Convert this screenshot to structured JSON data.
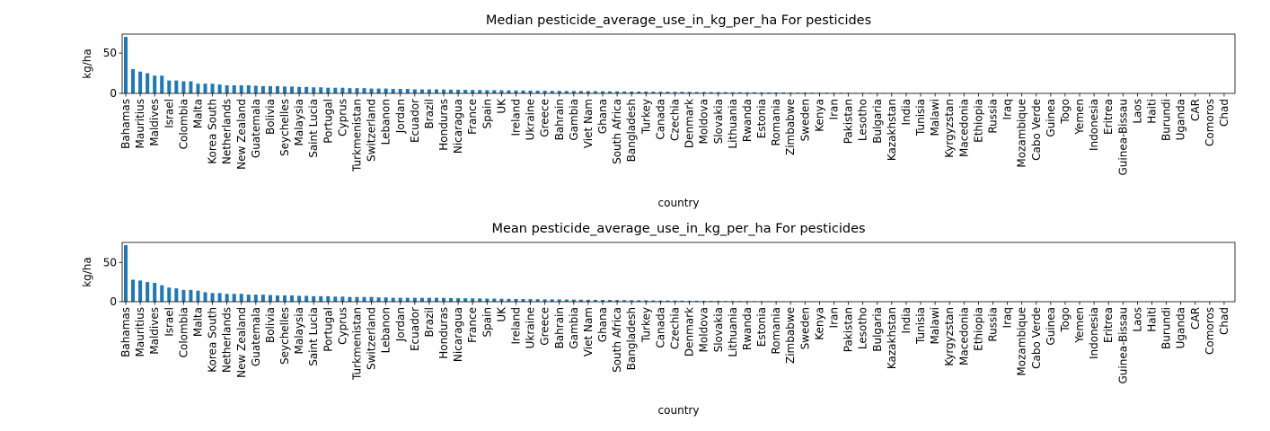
{
  "chart_data": [
    {
      "type": "bar",
      "title": "Median pesticide_average_use_in_kg_per_ha For pesticides",
      "xlabel": "country",
      "ylabel": "kg/ha",
      "color": "#1f77b4",
      "ylim": [
        0,
        73.5
      ],
      "yticks": [
        0,
        50
      ],
      "categories": [
        "Bahamas",
        null,
        "Mauritius",
        null,
        "Maldives",
        null,
        "Israel",
        null,
        "Colombia",
        null,
        "Malta",
        null,
        "Korea South",
        null,
        "Netherlands",
        null,
        "New Zealand",
        null,
        "Guatemala",
        null,
        "Bolivia",
        null,
        "Seychelles",
        null,
        "Malaysia",
        null,
        "Saint Lucia",
        null,
        "Portugal",
        null,
        "Cyprus",
        null,
        "Turkmenistan",
        null,
        "Switzerland",
        null,
        "Lebanon",
        null,
        "Jordan",
        null,
        "Ecuador",
        null,
        "Brazil",
        null,
        "Honduras",
        null,
        "Nicaragua",
        null,
        "France",
        null,
        "Spain",
        null,
        "UK",
        null,
        "Ireland",
        null,
        "Ukraine",
        null,
        "Greece",
        null,
        "Bahrain",
        null,
        "Gambia",
        null,
        "Viet Nam",
        null,
        "Ghana",
        null,
        "South Africa",
        null,
        "Bangladesh",
        null,
        "Turkey",
        null,
        "Canada",
        null,
        "Czechia",
        null,
        "Denmark",
        null,
        "Moldova",
        null,
        "Slovakia",
        null,
        "Lithuania",
        null,
        "Rwanda",
        null,
        "Estonia",
        null,
        "Romania",
        null,
        "Zimbabwe",
        null,
        "Sweden",
        null,
        "Kenya",
        null,
        "Iran",
        null,
        "Pakistan",
        null,
        "Lesotho",
        null,
        "Bulgaria",
        null,
        "Kazakhstan",
        null,
        "India",
        null,
        "Tunisia",
        null,
        "Malawi",
        null,
        "Kyrgyzstan",
        null,
        "Macedonia",
        null,
        "Ethiopia",
        null,
        "Russia",
        null,
        "Iraq",
        null,
        "Mozambique",
        null,
        "Cabo Verde",
        null,
        "Guinea",
        null,
        "Togo",
        null,
        "Yemen",
        null,
        "Indonesia",
        null,
        "Eritrea",
        null,
        "Guinea-Bissau",
        null,
        "Laos",
        null,
        "Haiti",
        null,
        "Burundi",
        null,
        "Uganda",
        null,
        "CAR",
        null,
        "Comoros",
        null,
        "Chad",
        null
      ],
      "values": [
        70,
        30,
        27,
        25,
        22,
        22,
        16,
        16,
        15,
        15,
        12,
        12,
        12,
        11,
        10,
        10,
        10,
        10,
        9.5,
        9,
        9,
        9,
        8.5,
        8.5,
        8,
        8,
        7.5,
        7.5,
        7,
        7,
        7,
        6.5,
        6.5,
        6.5,
        6,
        6,
        6,
        5.5,
        5.5,
        5.5,
        5,
        5,
        5,
        5,
        4.8,
        4.6,
        4.5,
        4.4,
        4.3,
        4.2,
        4,
        4,
        3.9,
        3.8,
        3.7,
        3.6,
        3.5,
        3.4,
        3.3,
        3.2,
        3.1,
        3,
        3,
        2.9,
        2.8,
        2.7,
        2.6,
        2.5,
        2.5,
        2.4,
        2.3,
        2.2,
        2.2,
        2.1,
        2,
        2,
        1.9,
        1.9,
        1.8,
        1.7,
        1.7,
        1.6,
        1.5,
        1.5,
        1.4,
        1.4,
        1.3,
        1.3,
        1.2,
        1.2,
        1.1,
        1.1,
        1,
        1,
        1,
        0.9,
        0.9,
        0.9,
        0.8,
        0.8,
        0.8,
        0.7,
        0.7,
        0.7,
        0.6,
        0.6,
        0.6,
        0.5,
        0.5,
        0.5,
        0.5,
        0.4,
        0.4,
        0.4,
        0.4,
        0.3,
        0.3,
        0.3,
        0.3,
        0.3,
        0.2,
        0.2,
        0.2,
        0.2,
        0.1,
        0.1,
        0.1,
        0.1,
        0.1,
        0.1,
        0.1,
        0.1,
        0.1,
        0.1,
        0.1,
        0.05,
        0.05,
        0.05,
        0.05,
        0.05,
        0.05,
        0.05,
        0.05,
        0.05,
        0.02,
        0.02,
        0.02,
        0.02,
        0.02,
        0.02,
        0.02,
        0.01,
        0.01,
        0.01
      ]
    },
    {
      "type": "bar",
      "title": "Mean pesticide_average_use_in_kg_per_ha For pesticides",
      "xlabel": "country",
      "ylabel": "kg/ha",
      "color": "#1f77b4",
      "ylim": [
        0,
        75.5
      ],
      "yticks": [
        0,
        50
      ],
      "categories": [
        "Bahamas",
        null,
        "Mauritius",
        null,
        "Maldives",
        null,
        "Israel",
        null,
        "Colombia",
        null,
        "Malta",
        null,
        "Korea South",
        null,
        "Netherlands",
        null,
        "New Zealand",
        null,
        "Guatemala",
        null,
        "Bolivia",
        null,
        "Seychelles",
        null,
        "Malaysia",
        null,
        "Saint Lucia",
        null,
        "Portugal",
        null,
        "Cyprus",
        null,
        "Turkmenistan",
        null,
        "Switzerland",
        null,
        "Lebanon",
        null,
        "Jordan",
        null,
        "Ecuador",
        null,
        "Brazil",
        null,
        "Honduras",
        null,
        "Nicaragua",
        null,
        "France",
        null,
        "Spain",
        null,
        "UK",
        null,
        "Ireland",
        null,
        "Ukraine",
        null,
        "Greece",
        null,
        "Bahrain",
        null,
        "Gambia",
        null,
        "Viet Nam",
        null,
        "Ghana",
        null,
        "South Africa",
        null,
        "Bangladesh",
        null,
        "Turkey",
        null,
        "Canada",
        null,
        "Czechia",
        null,
        "Denmark",
        null,
        "Moldova",
        null,
        "Slovakia",
        null,
        "Lithuania",
        null,
        "Rwanda",
        null,
        "Estonia",
        null,
        "Romania",
        null,
        "Zimbabwe",
        null,
        "Sweden",
        null,
        "Kenya",
        null,
        "Iran",
        null,
        "Pakistan",
        null,
        "Lesotho",
        null,
        "Bulgaria",
        null,
        "Kazakhstan",
        null,
        "India",
        null,
        "Tunisia",
        null,
        "Malawi",
        null,
        "Kyrgyzstan",
        null,
        "Macedonia",
        null,
        "Ethiopia",
        null,
        "Russia",
        null,
        "Iraq",
        null,
        "Mozambique",
        null,
        "Cabo Verde",
        null,
        "Guinea",
        null,
        "Togo",
        null,
        "Yemen",
        null,
        "Indonesia",
        null,
        "Eritrea",
        null,
        "Guinea-Bissau",
        null,
        "Laos",
        null,
        "Haiti",
        null,
        "Burundi",
        null,
        "Uganda",
        null,
        "CAR",
        null,
        "Comoros",
        null,
        "Chad",
        null
      ],
      "values": [
        72,
        28,
        27,
        25,
        24,
        21,
        18,
        17,
        15,
        15,
        14,
        12,
        11,
        11,
        10,
        10,
        10,
        9,
        9,
        9,
        8.5,
        8,
        8,
        8,
        7.5,
        7.5,
        7,
        7,
        7,
        6.5,
        6.5,
        6,
        6,
        6,
        6,
        5.5,
        5.5,
        5,
        5,
        5,
        5,
        5,
        5,
        5,
        4.8,
        4.6,
        4.5,
        4.4,
        4.3,
        4.2,
        4,
        4,
        3.8,
        3.6,
        3.5,
        3.4,
        3.3,
        3.2,
        3,
        3,
        2.9,
        2.8,
        2.7,
        2.6,
        2.5,
        2.4,
        2.3,
        2.2,
        2.1,
        2,
        1.9,
        1.8,
        1.7,
        1.6,
        1.5,
        1.5,
        1.4,
        1.3,
        1.2,
        1.2,
        1.1,
        1,
        1,
        0.9,
        0.9,
        0.8,
        0.8,
        0.7,
        0.7,
        0.6,
        0.6,
        0.5,
        0.5,
        0.4,
        0.3,
        0.2,
        0.1,
        0.1,
        0.05,
        0.05,
        0.02,
        0.02,
        0.02,
        0.02,
        0.02,
        0.02,
        0.02,
        0.02,
        0.02,
        0.02,
        0.01,
        0.01,
        0.01,
        0.01,
        0.01,
        0.01,
        0.01,
        0.01,
        0.01,
        0.01,
        0.01,
        0.01,
        0.01,
        0.01,
        0.01,
        0.01,
        0.01,
        0.01,
        0.01,
        0.01,
        0.01,
        0.01,
        0.01,
        0.01,
        0.01,
        0.01,
        0.01,
        0.01,
        0.01,
        0.01,
        0.01,
        0.01,
        0.01,
        0.01,
        0.01,
        0.01,
        0.01,
        0.01,
        0.01,
        0.01,
        0.01,
        0.01,
        0.01,
        0.01
      ]
    }
  ]
}
